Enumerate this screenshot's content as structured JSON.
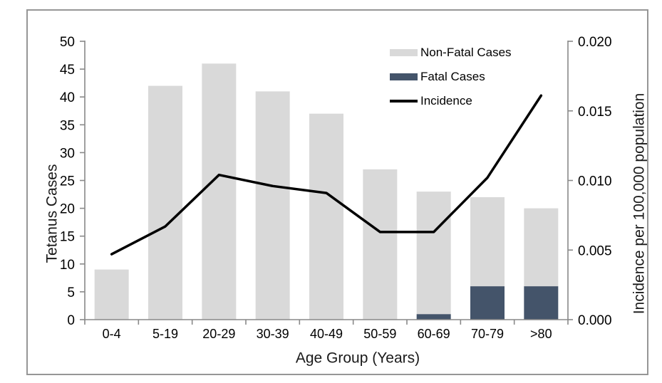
{
  "chart_data": {
    "type": "combo",
    "title": "",
    "categories": [
      "0-4",
      "5-19",
      "20-29",
      "30-39",
      "40-49",
      "50-59",
      "60-69",
      "70-79",
      ">80"
    ],
    "series": [
      {
        "name": "Non-Fatal Cases",
        "type": "bar",
        "stacked": true,
        "axis": "left",
        "color": "#d9d9d9",
        "values": [
          9,
          42,
          46,
          41,
          37,
          27,
          22,
          16,
          14
        ]
      },
      {
        "name": "Fatal Cases",
        "type": "bar",
        "stacked": true,
        "axis": "left",
        "color": "#44546a",
        "values": [
          0,
          0,
          0,
          0,
          0,
          0,
          1,
          6,
          6
        ]
      },
      {
        "name": "Incidence",
        "type": "line",
        "axis": "right",
        "color": "#000000",
        "values": [
          0.0047,
          0.0067,
          0.0104,
          0.0096,
          0.0091,
          0.0063,
          0.0063,
          0.0102,
          0.0161
        ]
      }
    ],
    "stacked_bar_totals": [
      9,
      42,
      46,
      41,
      37,
      27,
      23,
      22,
      20
    ],
    "x_axis": {
      "title": "Age Group (Years)"
    },
    "left_axis": {
      "title": "Tetanus Cases",
      "min": 0,
      "max": 50,
      "step": 5,
      "tick_labels": [
        "0",
        "5",
        "10",
        "15",
        "20",
        "25",
        "30",
        "35",
        "40",
        "45",
        "50"
      ]
    },
    "right_axis": {
      "title": "Incidence per 100,000 population",
      "min": 0.0,
      "max": 0.02,
      "step": 0.005,
      "tick_labels": [
        "0.000",
        "0.005",
        "0.010",
        "0.015",
        "0.020"
      ]
    },
    "legend": {
      "position": "top-right-inside",
      "entries": [
        "Non-Fatal Cases",
        "Fatal Cases",
        "Incidence"
      ]
    },
    "grid": "off",
    "colors": {
      "axis_line": "#898989",
      "frame_border": "#969696",
      "text": "#000000",
      "plot_background": "#ffffff"
    }
  }
}
